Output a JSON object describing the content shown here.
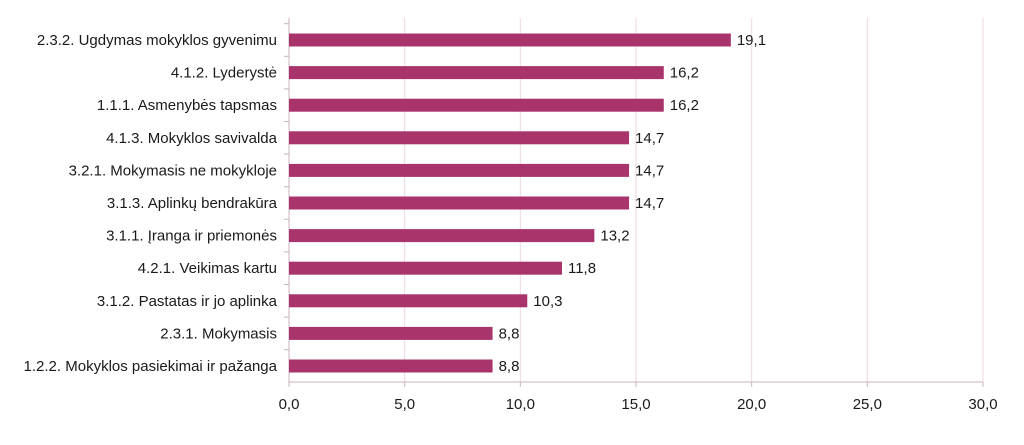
{
  "chart_data": {
    "type": "bar",
    "orientation": "horizontal",
    "categories": [
      "2.3.2. Ugdymas mokyklos gyvenimu",
      "4.1.2. Lyderystė",
      "1.1.1. Asmenybės tapsmas",
      "4.1.3. Mokyklos savivalda",
      "3.2.1. Mokymasis ne mokykloje",
      "3.1.3. Aplinkų bendrakūra",
      "3.1.1. Įranga ir priemonės",
      "4.2.1. Veikimas kartu",
      "3.1.2. Pastatas ir jo aplinka",
      "2.3.1. Mokymasis",
      "1.2.2. Mokyklos pasiekimai ir pažanga"
    ],
    "values": [
      19.1,
      16.2,
      16.2,
      14.7,
      14.7,
      14.7,
      13.2,
      11.8,
      10.3,
      8.8,
      8.8
    ],
    "value_labels": [
      "19,1",
      "16,2",
      "16,2",
      "14,7",
      "14,7",
      "14,7",
      "13,2",
      "11,8",
      "10,3",
      "8,8",
      "8,8"
    ],
    "xlim": [
      0,
      30
    ],
    "x_ticks": [
      0,
      5,
      10,
      15,
      20,
      25,
      30
    ],
    "x_tick_labels": [
      "0,0",
      "5,0",
      "10,0",
      "15,0",
      "20,0",
      "25,0",
      "30,0"
    ],
    "grid": "vertical",
    "bar_color": "#a8346b",
    "grid_color": "#efd7e3",
    "axis_color": "#c9b3bf"
  }
}
